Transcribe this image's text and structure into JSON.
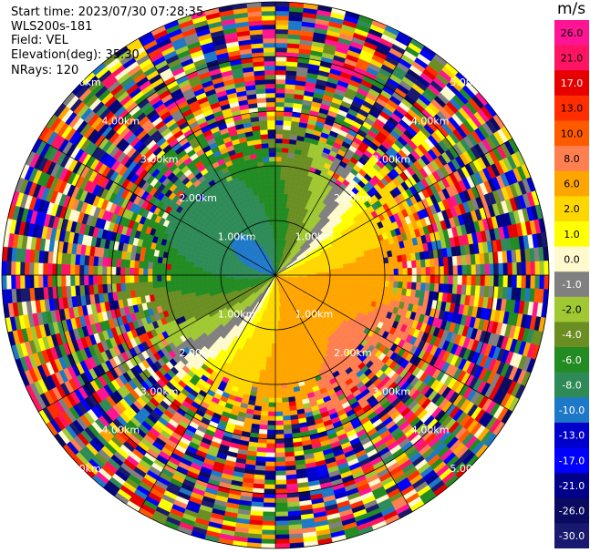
{
  "info": {
    "start_time": "Start time: 2023/07/30 07:28:35",
    "instrument": "WLS200s-181",
    "field": "Field: VEL",
    "elevation": "Elevation(deg): 35.30",
    "nrays": "NRays: 120"
  },
  "chart_data": {
    "type": "heatmap",
    "projection": "polar-ppi",
    "colorbar_unit": "m/s",
    "colorbar_ticks": [
      "26.0",
      "21.0",
      "17.0",
      "13.0",
      "10.0",
      "8.0",
      "6.0",
      "2.0",
      "1.0",
      "0.0",
      "-1.0",
      "-2.0",
      "-4.0",
      "-6.0",
      "-8.0",
      "-10.0",
      "-13.0",
      "-17.0",
      "-21.0",
      "-26.0",
      "-30.0"
    ],
    "colorbar_colors": [
      "#ff1493",
      "#ff1464",
      "#e60000",
      "#ff2d00",
      "#ff5a00",
      "#ff7f50",
      "#ffa500",
      "#ffd700",
      "#ffff00",
      "#fffacd",
      "#808080",
      "#a0c832",
      "#6b8e23",
      "#228b22",
      "#2e8b57",
      "#1e78c8",
      "#0000cd",
      "#0000ff",
      "#00008b",
      "#0a0a60",
      "#191970"
    ],
    "range_ring_labels": [
      "1.00km",
      "2.00km",
      "3.00km",
      "4.00km",
      "5.00km"
    ],
    "range_ring_km": [
      1,
      2,
      3,
      4,
      5
    ],
    "max_range_km": 5,
    "grid": true
  }
}
